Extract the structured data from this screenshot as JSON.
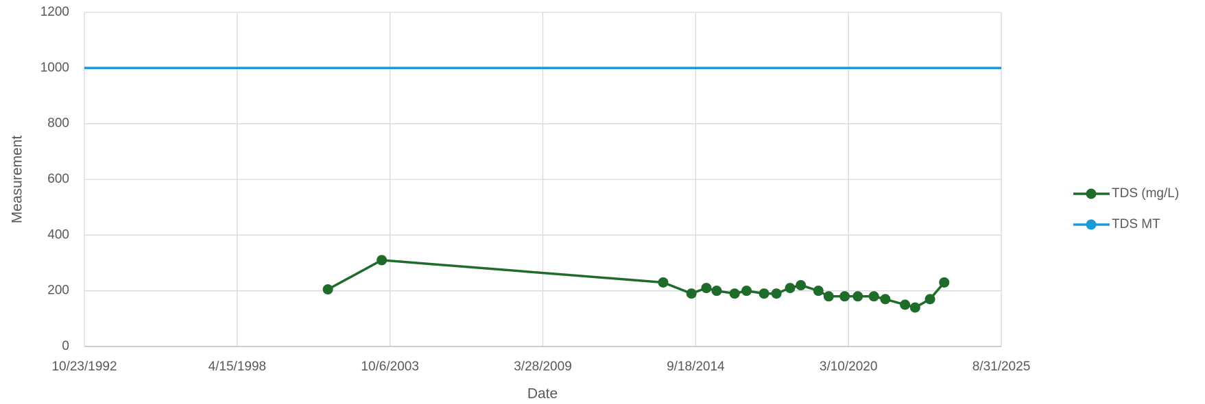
{
  "chart_data": {
    "type": "line",
    "x_label": "Date",
    "y_label": "Measurement",
    "xlim": [
      "10/23/1992",
      "8/31/2025"
    ],
    "xticks": [
      "10/23/1992",
      "4/15/1998",
      "10/6/2003",
      "3/28/2009",
      "9/18/2014",
      "3/10/2020",
      "8/31/2025"
    ],
    "ylim": [
      0,
      1200
    ],
    "yticks": [
      0,
      200,
      400,
      600,
      800,
      1000,
      1200
    ],
    "grid": true,
    "legend": "right",
    "series": [
      {
        "name": "TDS (mg/L)",
        "color": "#1e6b2a",
        "markers": true,
        "x": [
          "7/15/2001",
          "6/20/2003",
          "7/20/2013",
          "7/25/2014",
          "2/5/2015",
          "6/20/2015",
          "2/10/2016",
          "7/15/2016",
          "3/1/2017",
          "8/10/2017",
          "2/5/2018",
          "6/25/2018",
          "2/10/2019",
          "6/25/2019",
          "1/20/2020",
          "7/10/2020",
          "2/5/2021",
          "7/5/2021",
          "3/20/2022",
          "7/30/2022",
          "2/10/2023",
          "8/15/2023"
        ],
        "values": [
          205,
          310,
          230,
          190,
          210,
          200,
          190,
          200,
          190,
          190,
          210,
          220,
          200,
          180,
          180,
          180,
          180,
          170,
          150,
          140,
          170,
          230
        ]
      },
      {
        "name": "TDS MT",
        "color": "#1a9bd7",
        "markers": false,
        "x": [
          "10/23/1992",
          "8/31/2025"
        ],
        "values": [
          1000,
          1000
        ]
      }
    ]
  }
}
